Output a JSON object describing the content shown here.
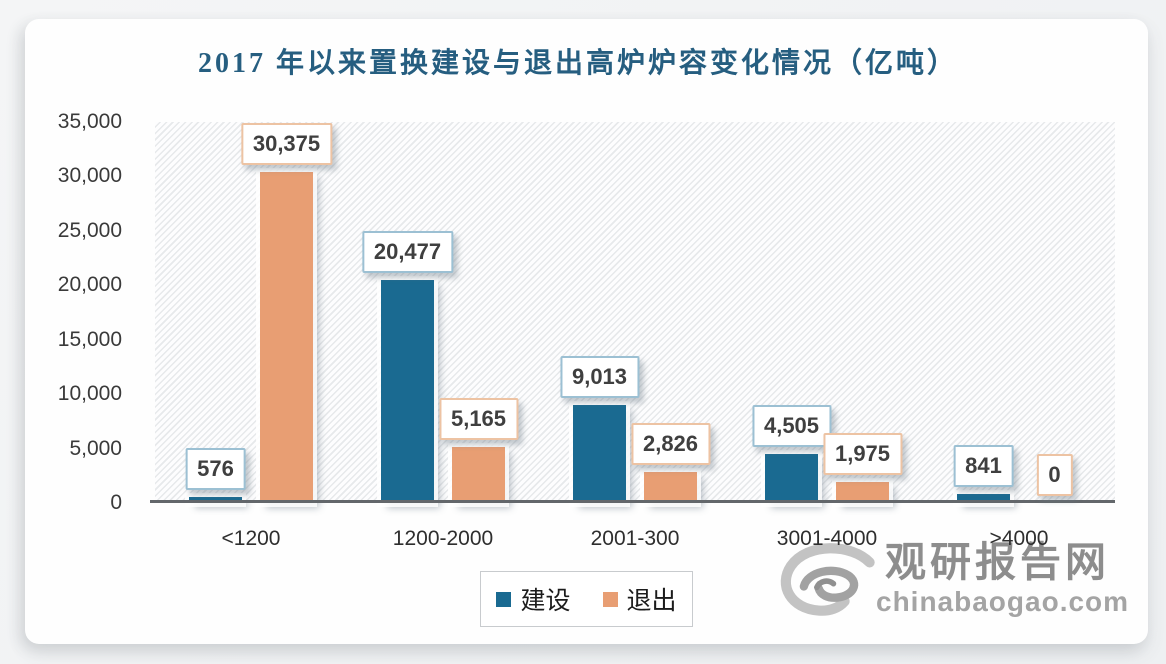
{
  "page": {
    "background": "#f1f2f4",
    "card_background": "#fefefe"
  },
  "chart_data": {
    "type": "bar",
    "title": "2017 年以来置换建设与退出高炉炉容变化情况（亿吨）",
    "title_color": "#265e80",
    "categories": [
      "<1200",
      "1200-2000",
      "2001-300",
      "3001-4000",
      ">4000"
    ],
    "series": [
      {
        "name": "建设",
        "color": "#1a6a91",
        "callout_border": "#9cc0d3",
        "values": [
          576,
          20477,
          9013,
          4505,
          841
        ],
        "labels": [
          "576",
          "20,477",
          "9,013",
          "4,505",
          "841"
        ]
      },
      {
        "name": "退出",
        "color": "#e89e73",
        "callout_border": "#edc3a3",
        "values": [
          30375,
          5165,
          2826,
          1975,
          0
        ],
        "labels": [
          "30,375",
          "5,165",
          "2,826",
          "1,975",
          "0"
        ]
      }
    ],
    "ylim": [
      0,
      35000
    ],
    "y_ticks": [
      {
        "value": 35000,
        "label": "35,000"
      },
      {
        "value": 30000,
        "label": "30,000"
      },
      {
        "value": 25000,
        "label": "25,000"
      },
      {
        "value": 20000,
        "label": "20,000"
      },
      {
        "value": 15000,
        "label": "15,000"
      },
      {
        "value": 10000,
        "label": "10,000"
      },
      {
        "value": 5000,
        "label": "5,000"
      },
      {
        "value": 0,
        "label": "0"
      }
    ],
    "grid": false,
    "legend_position": "bottom-center",
    "plot_background": "diagonal-hatch"
  },
  "legend": {
    "items": [
      {
        "label": "建设",
        "color": "#1a6a91"
      },
      {
        "label": "退出",
        "color": "#e89e73"
      }
    ]
  },
  "watermark": {
    "logo": "swirl-logo",
    "brand": "观研报告网",
    "domain": "chinabaogao.com"
  }
}
